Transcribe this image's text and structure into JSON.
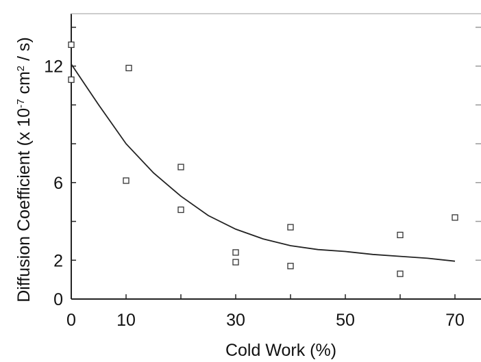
{
  "chart_data": {
    "type": "scatter",
    "xlabel": "Cold Work (%)",
    "ylabel": {
      "prefix": "Diffusion Coefficient (x 10",
      "exponent": "-7",
      "middle": " cm",
      "exponent2": "2",
      "suffix": " / s)"
    },
    "xlim": [
      0,
      80
    ],
    "ylim": [
      0,
      14.7
    ],
    "x_tick_labels": [
      {
        "value": 0,
        "label": "0"
      },
      {
        "value": 10,
        "label": "10"
      },
      {
        "value": 30,
        "label": "30"
      },
      {
        "value": 50,
        "label": "50"
      },
      {
        "value": 70,
        "label": "70"
      }
    ],
    "x_minor_ticks": [
      10,
      20,
      30,
      40,
      50,
      60,
      70
    ],
    "y_tick_labels": [
      {
        "value": 0,
        "label": "0"
      },
      {
        "value": 2,
        "label": "2"
      },
      {
        "value": 6,
        "label": "6"
      },
      {
        "value": 12,
        "label": "12"
      }
    ],
    "y_minor_ticks": [
      2,
      4,
      6,
      8,
      10,
      12,
      14
    ],
    "grid": false,
    "points": [
      {
        "x": 0,
        "y": 13.1
      },
      {
        "x": 0,
        "y": 11.3
      },
      {
        "x": 10.5,
        "y": 11.9
      },
      {
        "x": 10,
        "y": 6.1
      },
      {
        "x": 20,
        "y": 6.8
      },
      {
        "x": 20,
        "y": 4.6
      },
      {
        "x": 30,
        "y": 2.4
      },
      {
        "x": 30,
        "y": 1.9
      },
      {
        "x": 40,
        "y": 3.7
      },
      {
        "x": 40,
        "y": 1.7
      },
      {
        "x": 60,
        "y": 3.3
      },
      {
        "x": 60,
        "y": 1.3
      },
      {
        "x": 70,
        "y": 4.2
      }
    ],
    "fit_curve": {
      "x": [
        0,
        5,
        10,
        15,
        20,
        25,
        30,
        35,
        40,
        45,
        50,
        55,
        60,
        65,
        70
      ],
      "y": [
        12.1,
        10.0,
        8.0,
        6.5,
        5.3,
        4.3,
        3.6,
        3.1,
        2.75,
        2.55,
        2.45,
        2.3,
        2.2,
        2.1,
        1.95
      ]
    },
    "colors": {
      "points": "#333333",
      "curve": "#222222",
      "axis": "#222222"
    }
  }
}
